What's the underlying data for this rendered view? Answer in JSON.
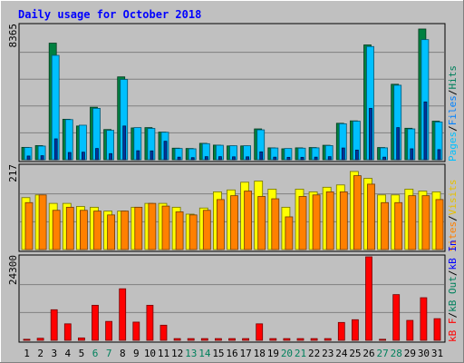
{
  "title": "Daily usage for October 2018",
  "colors": {
    "background": "#c0c0c0",
    "title_text": "#0000ff",
    "hits": "#008040",
    "files": "#00c0ff",
    "pages": "#00359f",
    "visits": "#ffff00",
    "sites": "#ff8000",
    "kbytes": "#ff0000",
    "weekend_label": "#00805c",
    "weekday_label": "#000000"
  },
  "chart_data": [
    {
      "type": "bar",
      "panel": "hits-files-pages",
      "ymax_label": "8365",
      "ylim": [
        0,
        8365
      ],
      "legend": [
        {
          "name": "Pages",
          "color": "#00c0ff"
        },
        {
          "name": "/",
          "color": "#000000"
        },
        {
          "name": "Files",
          "color": "#0080ff"
        },
        {
          "name": "/",
          "color": "#000000"
        },
        {
          "name": "Hits",
          "color": "#00805c"
        }
      ],
      "categories": [
        "1",
        "2",
        "3",
        "4",
        "5",
        "6",
        "7",
        "8",
        "9",
        "10",
        "11",
        "12",
        "13",
        "14",
        "15",
        "16",
        "17",
        "18",
        "19",
        "20",
        "21",
        "22",
        "23",
        "24",
        "25",
        "26",
        "27",
        "28",
        "29",
        "30",
        "31"
      ],
      "series": [
        {
          "name": "Hits",
          "values": [
            770,
            880,
            7260,
            2520,
            2100,
            3270,
            1880,
            5160,
            1980,
            2000,
            1720,
            720,
            700,
            1020,
            910,
            860,
            860,
            1920,
            740,
            680,
            740,
            760,
            900,
            2270,
            2420,
            7150,
            760,
            4700,
            1960,
            8140,
            2400
          ]
        },
        {
          "name": "Files",
          "values": [
            760,
            850,
            6500,
            2500,
            2150,
            3200,
            1830,
            5000,
            2000,
            1950,
            1710,
            700,
            680,
            1000,
            900,
            870,
            870,
            1860,
            730,
            700,
            720,
            740,
            880,
            2240,
            2400,
            7050,
            740,
            4640,
            1920,
            7480,
            2350
          ]
        },
        {
          "name": "Pages",
          "values": [
            230,
            250,
            1300,
            450,
            470,
            700,
            380,
            2100,
            560,
            550,
            1150,
            160,
            130,
            190,
            190,
            180,
            180,
            490,
            160,
            150,
            150,
            160,
            190,
            730,
            600,
            3200,
            160,
            2000,
            680,
            3600,
            630
          ]
        }
      ]
    },
    {
      "type": "bar",
      "panel": "visits-sites",
      "ymax_label": "217",
      "ylim": [
        0,
        217
      ],
      "legend": [
        {
          "name": "Visits",
          "color": "#ffff00"
        },
        {
          "name": "/",
          "color": "#000000"
        },
        {
          "name": "Sites",
          "color": "#ff8000"
        }
      ],
      "categories": [
        "1",
        "2",
        "3",
        "4",
        "5",
        "6",
        "7",
        "8",
        "9",
        "10",
        "11",
        "12",
        "13",
        "14",
        "15",
        "16",
        "17",
        "18",
        "19",
        "20",
        "21",
        "22",
        "23",
        "24",
        "25",
        "26",
        "27",
        "28",
        "29",
        "30",
        "31"
      ],
      "series": [
        {
          "name": "Visits",
          "values": [
            135,
            142,
            120,
            120,
            112,
            110,
            100,
            100,
            110,
            120,
            120,
            110,
            92,
            108,
            150,
            155,
            175,
            178,
            157,
            110,
            157,
            150,
            162,
            168,
            203,
            185,
            142,
            142,
            157,
            152,
            150
          ]
        },
        {
          "name": "Sites",
          "values": [
            122,
            142,
            102,
            110,
            102,
            100,
            90,
            100,
            110,
            120,
            113,
            98,
            90,
            102,
            130,
            140,
            152,
            138,
            132,
            85,
            138,
            142,
            150,
            150,
            192,
            170,
            122,
            122,
            140,
            140,
            130
          ]
        }
      ]
    },
    {
      "type": "bar",
      "panel": "kbytes",
      "ymax_label": "24300",
      "ylim": [
        0,
        24300
      ],
      "legend": [
        {
          "name": "kB F",
          "color": "#ff0000"
        },
        {
          "name": "/",
          "color": "#000000"
        },
        {
          "name": "kB Out",
          "color": "#ff8000"
        },
        {
          "name": "/",
          "color": "#000000"
        },
        {
          "name": "kB In",
          "color": "#0000ff"
        }
      ],
      "categories": [
        "1",
        "2",
        "3",
        "4",
        "5",
        "6",
        "7",
        "8",
        "9",
        "10",
        "11",
        "12",
        "13",
        "14",
        "15",
        "16",
        "17",
        "18",
        "19",
        "20",
        "21",
        "22",
        "23",
        "24",
        "25",
        "26",
        "27",
        "28",
        "29",
        "30",
        "31"
      ],
      "series": [
        {
          "name": "kB F",
          "values": [
            300,
            600,
            8900,
            4800,
            700,
            10200,
            5500,
            15000,
            5300,
            10200,
            4400,
            500,
            500,
            500,
            500,
            500,
            500,
            4800,
            500,
            500,
            500,
            500,
            500,
            5200,
            6000,
            24300,
            300,
            13300,
            5800,
            12400,
            6300
          ]
        }
      ]
    }
  ]
}
